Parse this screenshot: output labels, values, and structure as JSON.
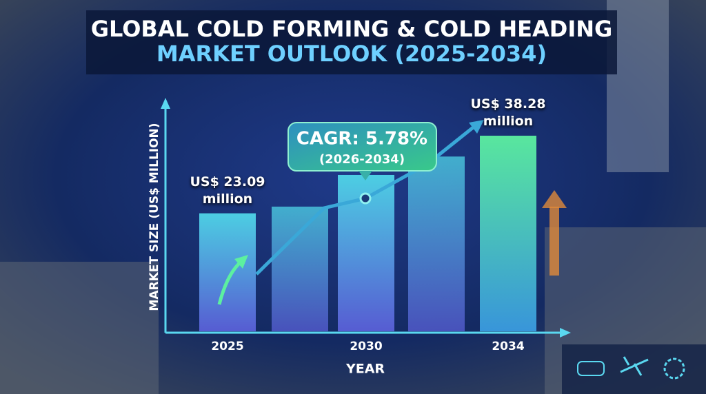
{
  "chart_data": {
    "type": "bar",
    "title": "GLOBAL COLD FORMING & COLD HEADING",
    "subtitle": "MARKET OUTLOOK (2025-2034)",
    "y_label": "MARKET SIZE (US$ MILLION)",
    "x_label": "YEAR",
    "annotation": "CAGR: 5.78%",
    "annotation_sub": "(2026-2034)",
    "categories": [
      "2025",
      null,
      "2030",
      null,
      "2034"
    ],
    "values": [
      23.09,
      24.4,
      30.6,
      34.2,
      38.28
    ],
    "value_labels": [
      "US$ 23.09\nmillion",
      null,
      null,
      null,
      "US$ 38.28\nmillion"
    ],
    "color": "#4fd6e8"
  }
}
